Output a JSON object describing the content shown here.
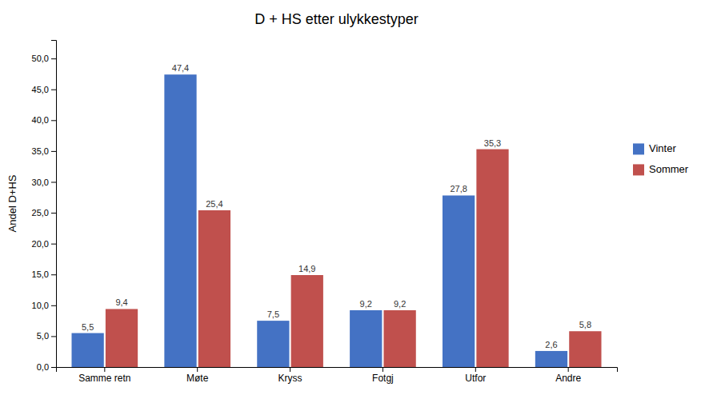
{
  "chart_data": {
    "type": "bar",
    "title": "D + HS etter ulykkestyper",
    "categories": [
      "Samme retn",
      "Møte",
      "Kryss",
      "Fotgj",
      "Utfor",
      "Andre"
    ],
    "series": [
      {
        "name": "Vinter",
        "color": "#4472C4",
        "values": [
          5.5,
          47.4,
          7.5,
          9.2,
          27.8,
          2.6
        ],
        "value_labels": [
          "5,5",
          "47,4",
          "7,5",
          "9,2",
          "27,8",
          "2,6"
        ]
      },
      {
        "name": "Sommer",
        "color": "#C0504D",
        "values": [
          9.4,
          25.4,
          14.9,
          9.2,
          35.3,
          5.8
        ],
        "value_labels": [
          "9,4",
          "25,4",
          "14,9",
          "9,2",
          "35,3",
          "5,8"
        ]
      }
    ],
    "ylabel": "Andel D+HS",
    "ylim": [
      0,
      53
    ],
    "yticks": [
      {
        "value": 0.0,
        "label": "0,0"
      },
      {
        "value": 5.0,
        "label": "5,0"
      },
      {
        "value": 10.0,
        "label": "10,0"
      },
      {
        "value": 15.0,
        "label": "15,0"
      },
      {
        "value": 20.0,
        "label": "20,0"
      },
      {
        "value": 25.0,
        "label": "25,0"
      },
      {
        "value": 30.0,
        "label": "30,0"
      },
      {
        "value": 35.0,
        "label": "35,0"
      },
      {
        "value": 40.0,
        "label": "40,0"
      },
      {
        "value": 45.0,
        "label": "45,0"
      },
      {
        "value": 50.0,
        "label": "50,0"
      }
    ],
    "grid": false,
    "legend": "right",
    "data_labels": true
  }
}
